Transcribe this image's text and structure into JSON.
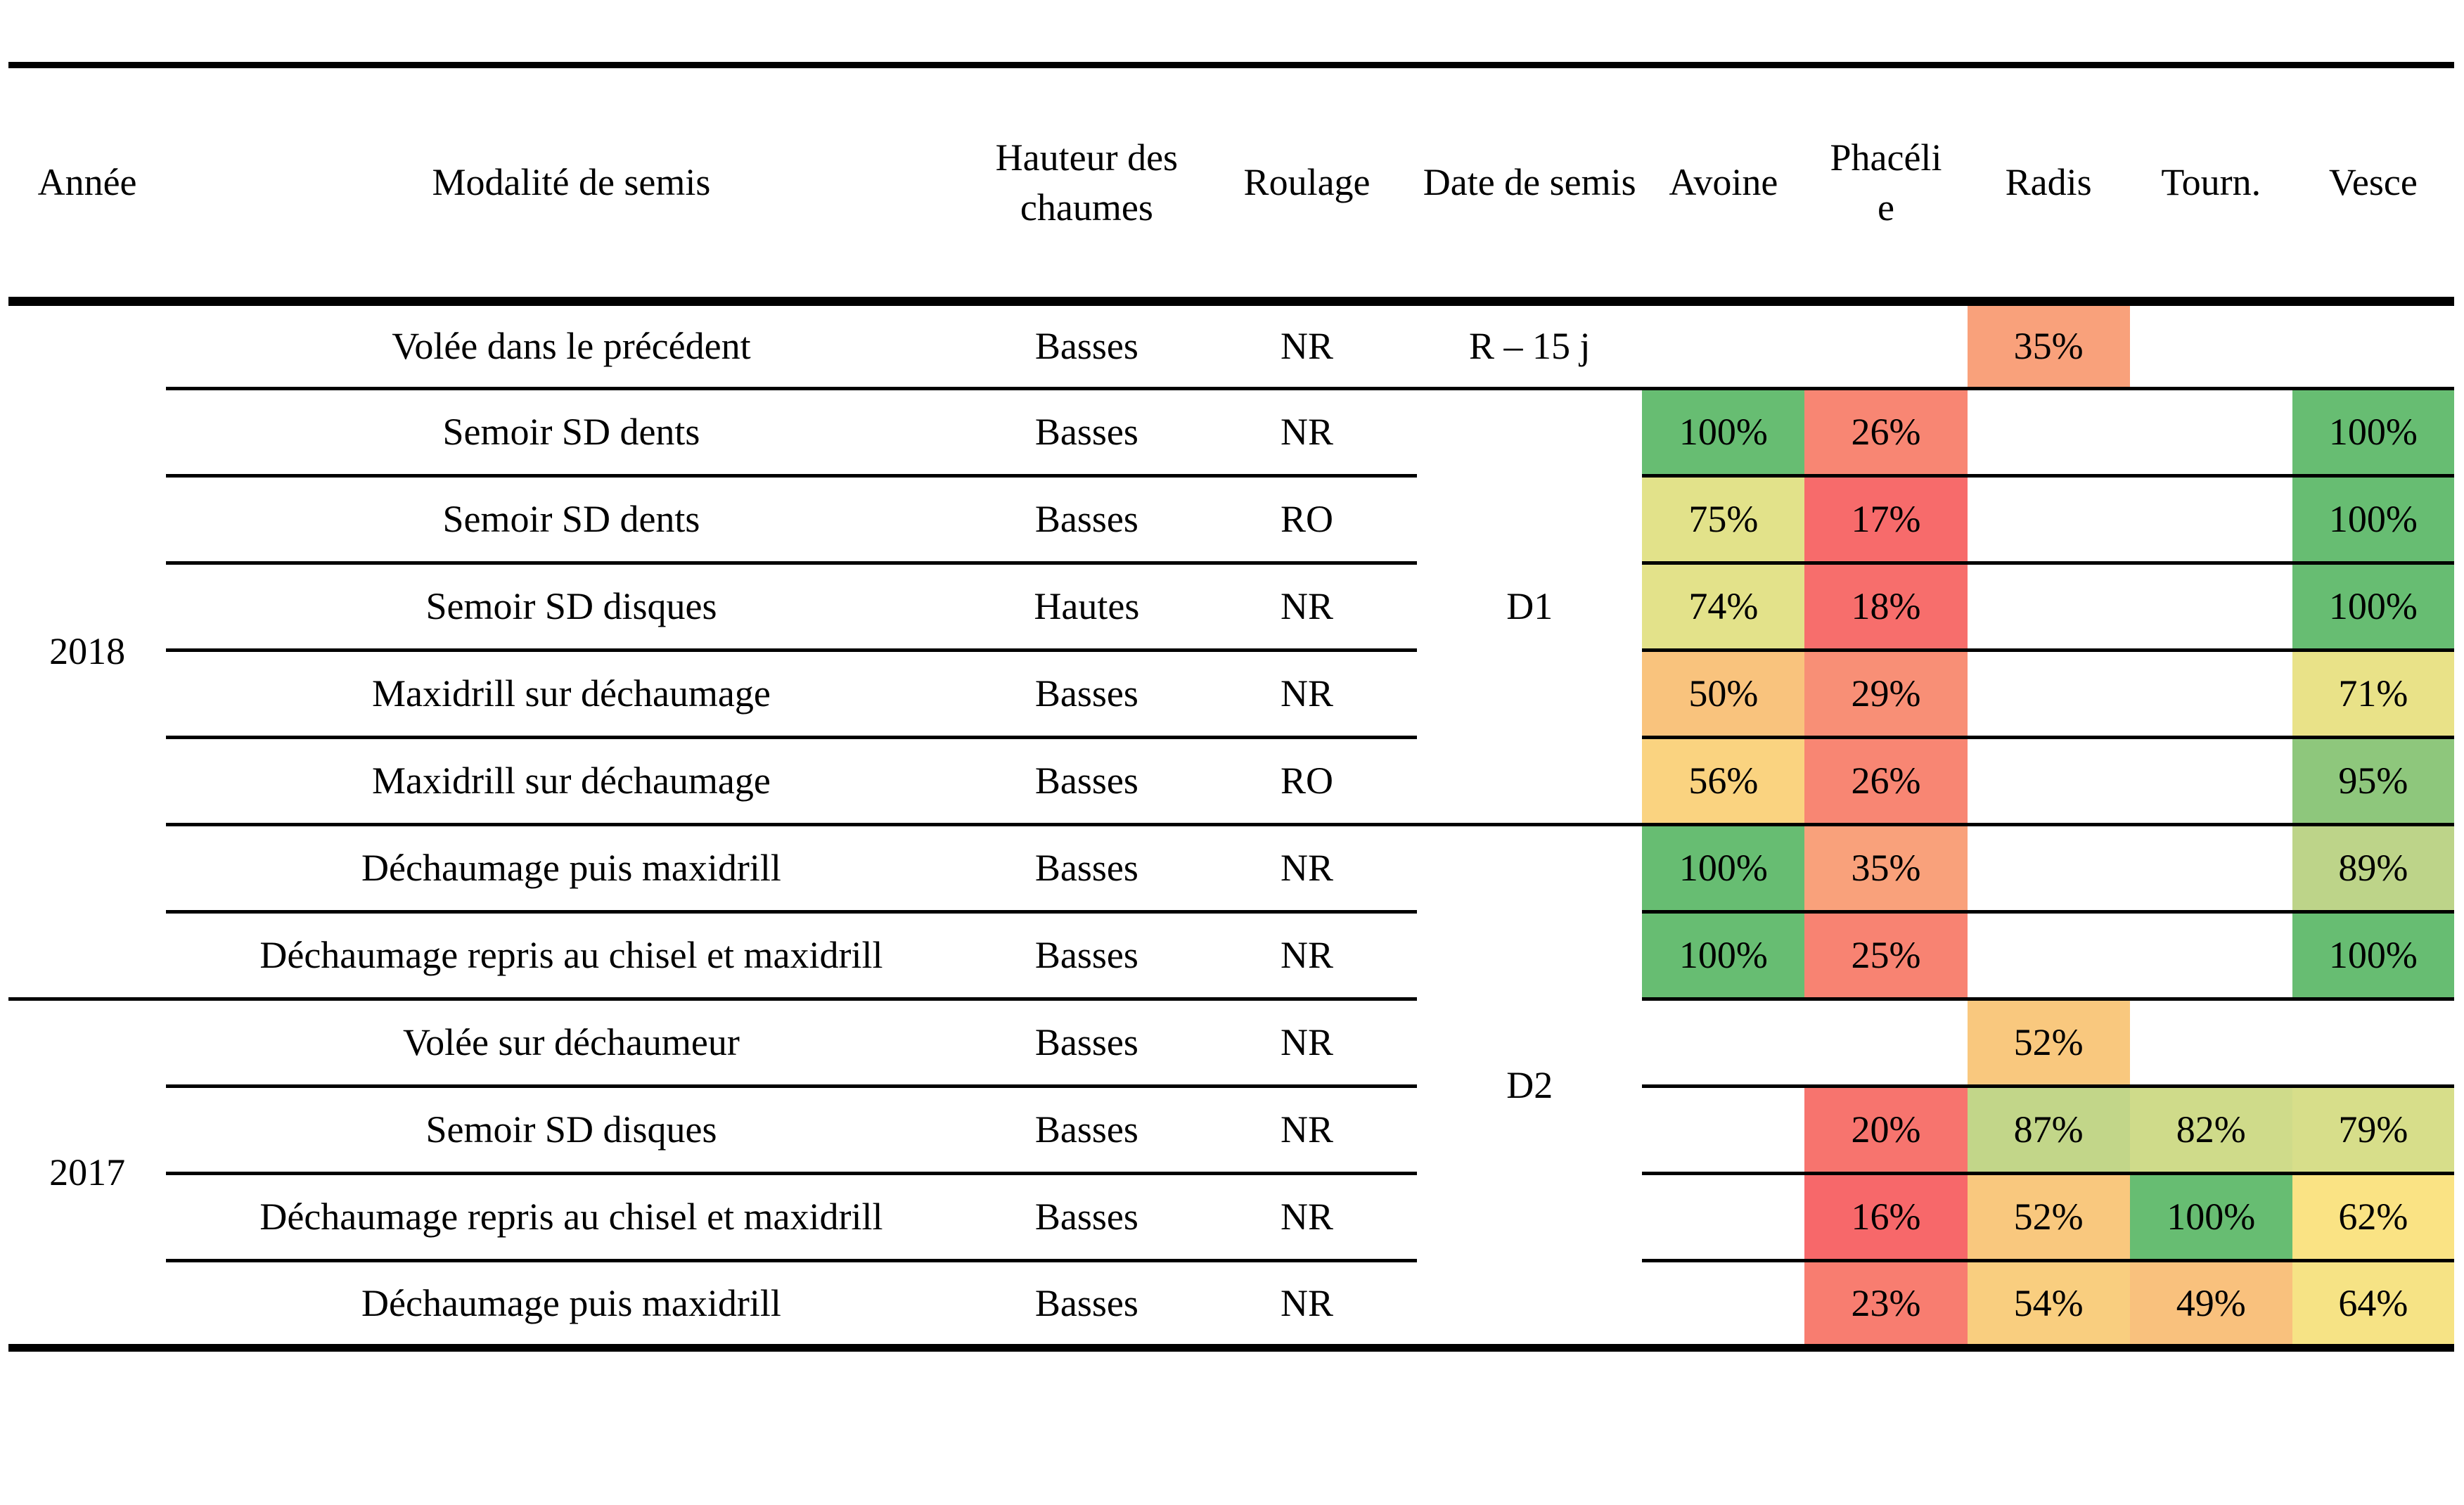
{
  "table": {
    "headers": {
      "annee": "Année",
      "modalite": "Modalité de semis",
      "hauteur": "Hauteur des chaumes",
      "roulage": "Roulage",
      "date": "Date de semis",
      "especes": [
        "Avoine",
        "Phacélie",
        "Radis",
        "Tourn.",
        "Vesce"
      ]
    },
    "year_groups": [
      {
        "label": "2018",
        "span": 8
      },
      {
        "label": "2017",
        "span": 4
      }
    ],
    "date_groups": [
      {
        "label": "R – 15 j",
        "span": 1
      },
      {
        "label": "D1",
        "span": 5
      },
      {
        "label": "D2",
        "span": 6
      }
    ],
    "rows": [
      {
        "modalite": "Volée dans le précédent",
        "hauteur": "Basses",
        "roulage": "NR",
        "cells": [
          null,
          null,
          {
            "value": "35%",
            "color": "#F9A17B"
          },
          null,
          null
        ]
      },
      {
        "modalite": "Semoir SD dents",
        "hauteur": "Basses",
        "roulage": "NR",
        "cells": [
          {
            "value": "100%",
            "color": "#67BD72"
          },
          {
            "value": "26%",
            "color": "#F88673"
          },
          null,
          null,
          {
            "value": "100%",
            "color": "#67BD72"
          }
        ]
      },
      {
        "modalite": "Semoir SD dents",
        "hauteur": "Basses",
        "roulage": "RO",
        "cells": [
          {
            "value": "75%",
            "color": "#E2E28A"
          },
          {
            "value": "17%",
            "color": "#F76B6B"
          },
          null,
          null,
          {
            "value": "100%",
            "color": "#67BD72"
          }
        ]
      },
      {
        "modalite": "Semoir SD disques",
        "hauteur": "Hautes",
        "roulage": "NR",
        "cells": [
          {
            "value": "74%",
            "color": "#E3E28A"
          },
          {
            "value": "18%",
            "color": "#F76E6C"
          },
          null,
          null,
          {
            "value": "100%",
            "color": "#67BD72"
          }
        ]
      },
      {
        "modalite": "Maxidrill sur déchaumage",
        "hauteur": "Basses",
        "roulage": "NR",
        "cells": [
          {
            "value": "50%",
            "color": "#F9C37D"
          },
          {
            "value": "29%",
            "color": "#F88F76"
          },
          null,
          null,
          {
            "value": "71%",
            "color": "#E9E288"
          }
        ]
      },
      {
        "modalite": "Maxidrill sur déchaumage",
        "hauteur": "Basses",
        "roulage": "RO",
        "cells": [
          {
            "value": "56%",
            "color": "#FAD380"
          },
          {
            "value": "26%",
            "color": "#F88673"
          },
          null,
          null,
          {
            "value": "95%",
            "color": "#8EC77C"
          }
        ]
      },
      {
        "modalite": "Déchaumage puis maxidrill",
        "hauteur": "Basses",
        "roulage": "NR",
        "cells": [
          {
            "value": "100%",
            "color": "#67BD72"
          },
          {
            "value": "35%",
            "color": "#F9A17B"
          },
          null,
          null,
          {
            "value": "89%",
            "color": "#BDD489"
          }
        ]
      },
      {
        "modalite": "Déchaumage repris au chisel et maxidrill",
        "hauteur": "Basses",
        "roulage": "NR",
        "cells": [
          {
            "value": "100%",
            "color": "#67BD72"
          },
          {
            "value": "25%",
            "color": "#F88372"
          },
          null,
          null,
          {
            "value": "100%",
            "color": "#67BD72"
          }
        ]
      },
      {
        "modalite": "Volée sur déchaumeur",
        "hauteur": "Basses",
        "roulage": "NR",
        "cells": [
          null,
          null,
          {
            "value": "52%",
            "color": "#F9C87E"
          },
          null,
          null
        ]
      },
      {
        "modalite": "Semoir SD disques",
        "hauteur": "Basses",
        "roulage": "NR",
        "cells": [
          null,
          {
            "value": "20%",
            "color": "#F7746E"
          },
          {
            "value": "87%",
            "color": "#C2D689"
          },
          {
            "value": "82%",
            "color": "#CFDB8A"
          },
          {
            "value": "79%",
            "color": "#D7DE8A"
          }
        ]
      },
      {
        "modalite": "Déchaumage repris au chisel et maxidrill",
        "hauteur": "Basses",
        "roulage": "NR",
        "cells": [
          null,
          {
            "value": "16%",
            "color": "#F7686A"
          },
          {
            "value": "52%",
            "color": "#F9C87E"
          },
          {
            "value": "100%",
            "color": "#67BD72"
          },
          {
            "value": "62%",
            "color": "#FAE384"
          }
        ]
      },
      {
        "modalite": "Déchaumage puis maxidrill",
        "hauteur": "Basses",
        "roulage": "NR",
        "cells": [
          null,
          {
            "value": "23%",
            "color": "#F87D70"
          },
          {
            "value": "54%",
            "color": "#F9CE7F"
          },
          {
            "value": "49%",
            "color": "#F9C17D"
          },
          {
            "value": "64%",
            "color": "#F6E385"
          }
        ]
      }
    ]
  }
}
